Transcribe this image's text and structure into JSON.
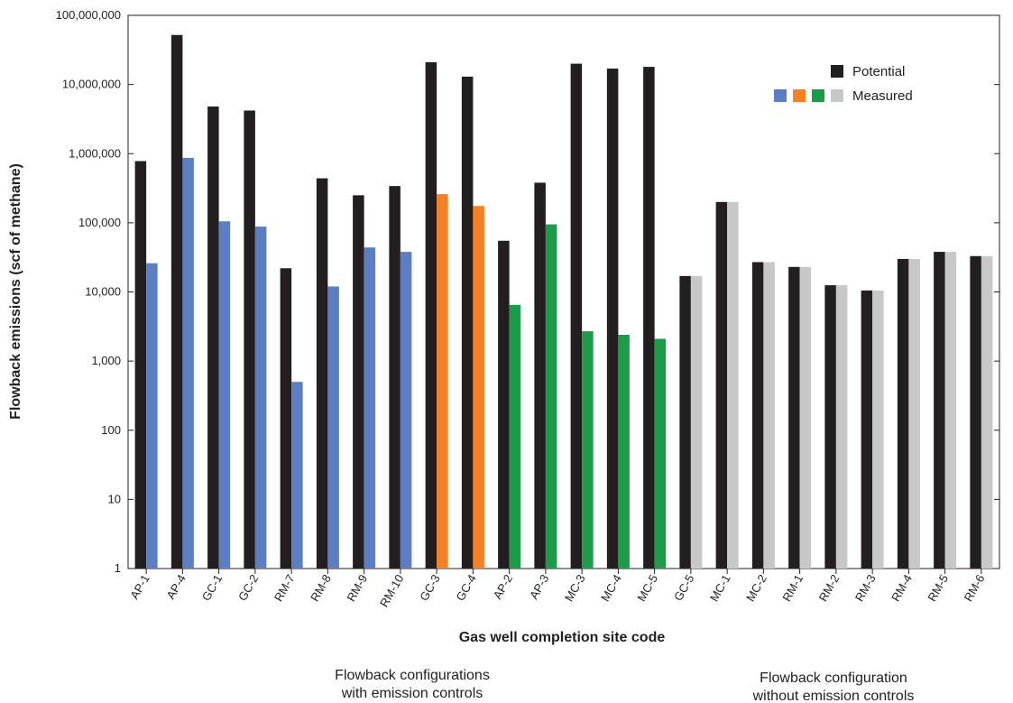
{
  "chart_data": {
    "type": "bar",
    "yscale": "log",
    "ylim": [
      1,
      100000000
    ],
    "ylabel": "Flowback emissions (scf of methane)",
    "xlabel": "Gas well completion site code",
    "yticks": [
      {
        "value": 1,
        "label": "1"
      },
      {
        "value": 10,
        "label": "10"
      },
      {
        "value": 100,
        "label": "100"
      },
      {
        "value": 1000,
        "label": "1,000"
      },
      {
        "value": 10000,
        "label": "10,000"
      },
      {
        "value": 100000,
        "label": "100,000"
      },
      {
        "value": 1000000,
        "label": "1,000,000"
      },
      {
        "value": 10000000,
        "label": "10,000,000"
      },
      {
        "value": 100000000,
        "label": "100,000,000"
      }
    ],
    "categories": [
      "AP-1",
      "AP-4",
      "GC-1",
      "GC-2",
      "RM-7",
      "RM-8",
      "RM-9",
      "RM-10",
      "GC-3",
      "GC-4",
      "AP-2",
      "AP-3",
      "MC-3",
      "MC-4",
      "MC-5",
      "GC-5",
      "MC-1",
      "MC-2",
      "RM-1",
      "RM-2",
      "RM-3",
      "RM-4",
      "RM-5",
      "RM-6"
    ],
    "series": [
      {
        "name": "Potential",
        "color": "#231f20",
        "values": [
          780000,
          52000000,
          4800000,
          4200000,
          22000,
          440000,
          250000,
          340000,
          21000000,
          13000000,
          55000,
          380000,
          20000000,
          17000000,
          18000000,
          17000,
          200000,
          27000,
          23000,
          12500,
          10500,
          30000,
          38000,
          33000
        ]
      },
      {
        "name": "Measured",
        "values": [
          26000,
          870000,
          105000,
          88000,
          500,
          12000,
          44000,
          38000,
          260000,
          175000,
          6500,
          95000,
          2700,
          2400,
          2100,
          17000,
          200000,
          27000,
          23000,
          12500,
          10500,
          30000,
          38000,
          33000
        ],
        "colors": [
          "#5b7fc2",
          "#5b7fc2",
          "#5b7fc2",
          "#5b7fc2",
          "#5b7fc2",
          "#5b7fc2",
          "#5b7fc2",
          "#5b7fc2",
          "#f58025",
          "#f58025",
          "#1e9b48",
          "#1e9b48",
          "#1e9b48",
          "#1e9b48",
          "#1e9b48",
          "#c8c8c8",
          "#c8c8c8",
          "#c8c8c8",
          "#c8c8c8",
          "#c8c8c8",
          "#c8c8c8",
          "#c8c8c8",
          "#c8c8c8",
          "#c8c8c8"
        ]
      }
    ],
    "legend": {
      "position": "top-right",
      "items": [
        {
          "label": "Potential",
          "swatches": [
            "#231f20"
          ]
        },
        {
          "label": "Measured",
          "swatches": [
            "#5b7fc2",
            "#f58025",
            "#1e9b48",
            "#c8c8c8"
          ]
        }
      ]
    },
    "group_labels": [
      {
        "lines": [
          "Flowback configurations",
          "with emission controls"
        ]
      },
      {
        "lines": [
          "Flowback configuration",
          "without emission controls"
        ]
      }
    ],
    "grid": false
  }
}
